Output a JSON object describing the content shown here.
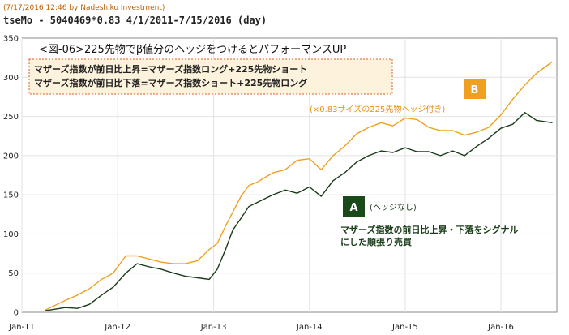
{
  "header": {
    "timestamp_note": "(7/17/2016 12:46 by Nadeshiko Investment)",
    "chart_id": "tseMo - 5040469*0.83  4/1/2011-7/15/2016 (day)"
  },
  "annotations": {
    "main_title": "<図-06>225先物でβ値分のヘッジをつけるとパフォーマンスUP",
    "box_line1": "マザーズ指数が前日比上昇=マザーズ指数ロング+225先物ショート",
    "box_line2": "マザーズ指数が前日比下落=マザーズ指数ショート+225先物ロング",
    "badge_b": "B",
    "label_b": "(×0.83サイズの225先物ヘッジ付き)",
    "badge_a": "A",
    "label_a": "(ヘッジなし)",
    "desc_line1": "マザーズ指数の前日比上昇・下落をシグナル",
    "desc_line2": "にした順張り売買"
  },
  "colors": {
    "series_b": "#f0a020",
    "series_a": "#1a3a1a",
    "badge_b_bg": "#f0a020",
    "badge_a_bg": "#1a4a1a",
    "box_border": "#e06020",
    "box_bg": "#fdf3dc",
    "grid": "#e2e2e2"
  },
  "chart_data": {
    "type": "line",
    "x_tick_labels": [
      "Jan-11",
      "Jan-12",
      "Jan-13",
      "Jan-14",
      "Jan-15",
      "Jan-16"
    ],
    "y_ticks": [
      0,
      50,
      100,
      150,
      200,
      250,
      300,
      350
    ],
    "xlim": [
      "2011-01-01",
      "2016-08-01"
    ],
    "ylim": [
      0,
      350
    ],
    "grid": true,
    "series": [
      {
        "key": "B",
        "x": [
          "2011-04-01",
          "2011-06-15",
          "2011-08-01",
          "2011-09-15",
          "2011-11-01",
          "2011-12-15",
          "2012-02-01",
          "2012-03-15",
          "2012-05-01",
          "2012-06-15",
          "2012-08-01",
          "2012-09-15",
          "2012-11-01",
          "2012-12-15",
          "2013-01-15",
          "2013-02-15",
          "2013-03-15",
          "2013-04-15",
          "2013-05-15",
          "2013-06-15",
          "2013-07-15",
          "2013-08-15",
          "2013-10-01",
          "2013-11-15",
          "2014-01-01",
          "2014-02-15",
          "2014-04-01",
          "2014-05-15",
          "2014-07-01",
          "2014-08-15",
          "2014-10-01",
          "2014-11-15",
          "2015-01-01",
          "2015-02-15",
          "2015-04-01",
          "2015-05-15",
          "2015-07-01",
          "2015-08-15",
          "2015-10-01",
          "2015-11-15",
          "2016-01-01",
          "2016-02-15",
          "2016-04-01",
          "2016-05-15",
          "2016-07-15"
        ],
        "values": [
          3,
          15,
          22,
          30,
          42,
          50,
          72,
          72,
          68,
          64,
          62,
          62,
          66,
          80,
          88,
          110,
          128,
          148,
          162,
          166,
          172,
          178,
          182,
          194,
          196,
          182,
          200,
          212,
          228,
          236,
          242,
          238,
          248,
          246,
          236,
          232,
          232,
          226,
          230,
          236,
          252,
          272,
          290,
          305,
          320
        ]
      },
      {
        "key": "A",
        "x": [
          "2011-04-01",
          "2011-06-15",
          "2011-08-01",
          "2011-09-15",
          "2011-11-01",
          "2011-12-15",
          "2012-02-01",
          "2012-03-15",
          "2012-05-01",
          "2012-06-15",
          "2012-08-01",
          "2012-09-15",
          "2012-11-01",
          "2012-12-15",
          "2013-01-15",
          "2013-02-15",
          "2013-03-15",
          "2013-04-15",
          "2013-05-15",
          "2013-06-15",
          "2013-07-15",
          "2013-08-15",
          "2013-10-01",
          "2013-11-15",
          "2014-01-01",
          "2014-02-15",
          "2014-04-01",
          "2014-05-15",
          "2014-07-01",
          "2014-08-15",
          "2014-10-01",
          "2014-11-15",
          "2015-01-01",
          "2015-02-15",
          "2015-04-01",
          "2015-05-15",
          "2015-07-01",
          "2015-08-15",
          "2015-10-01",
          "2015-11-15",
          "2016-01-01",
          "2016-02-15",
          "2016-04-01",
          "2016-05-15",
          "2016-07-15"
        ],
        "values": [
          2,
          6,
          5,
          10,
          22,
          32,
          50,
          62,
          58,
          55,
          50,
          46,
          44,
          42,
          55,
          80,
          105,
          120,
          135,
          140,
          145,
          150,
          156,
          152,
          160,
          148,
          168,
          178,
          192,
          200,
          206,
          204,
          210,
          205,
          205,
          200,
          206,
          200,
          212,
          222,
          235,
          240,
          255,
          245,
          242
        ]
      }
    ]
  }
}
